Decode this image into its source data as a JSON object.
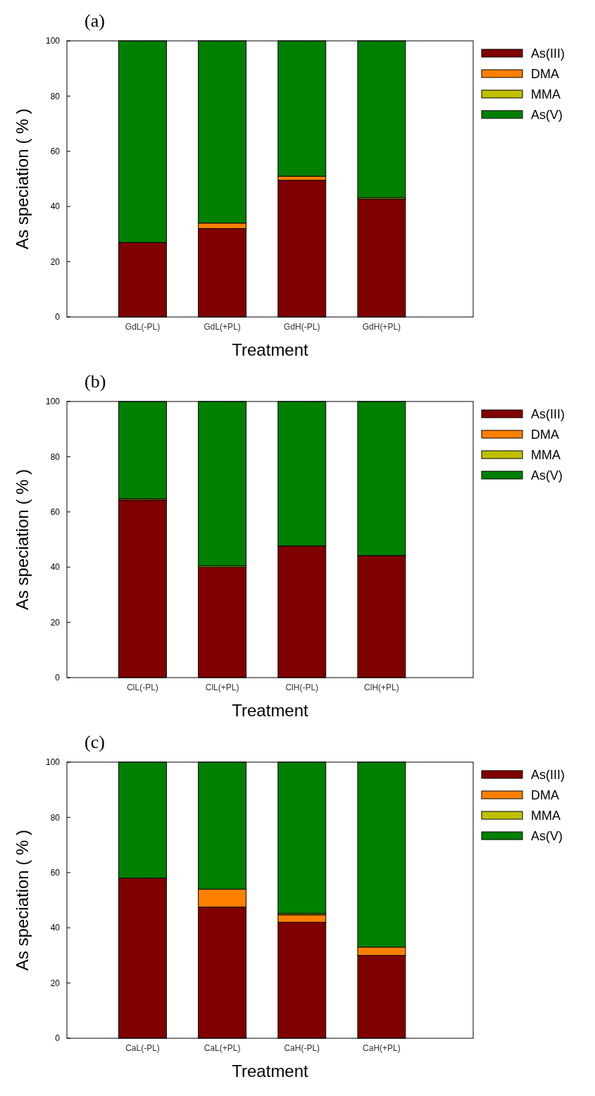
{
  "chart_data": [
    {
      "type": "bar",
      "title": "(a)",
      "xlabel": "Treatment",
      "ylabel": "As speciation ( % )",
      "categories": [
        "GdL(-PL)",
        "GdL(+PL)",
        "GdH(-PL)",
        "GdH(+PL)"
      ],
      "stacked": true,
      "legend": "right",
      "ylim": [
        0,
        100
      ],
      "yticks": [
        0,
        20,
        40,
        60,
        80,
        100
      ],
      "series": [
        {
          "name": "As(III)",
          "color": "#800000",
          "values": [
            27,
            32,
            49.5,
            42.7
          ]
        },
        {
          "name": "DMA",
          "color": "#ff8000",
          "values": [
            0,
            2,
            1.5,
            0
          ]
        },
        {
          "name": "MMA",
          "color": "#c0c000",
          "values": [
            0,
            0,
            0,
            0.5
          ]
        },
        {
          "name": "As(V)",
          "color": "#008000",
          "values": [
            73,
            66,
            49,
            56.8
          ]
        }
      ]
    },
    {
      "type": "bar",
      "title": "(b)",
      "xlabel": "Treatment",
      "ylabel": "As speciation ( % )",
      "categories": [
        "ClL(-PL)",
        "ClL(+PL)",
        "ClH(-PL)",
        "ClH(+PL)"
      ],
      "stacked": true,
      "legend": "right",
      "ylim": [
        0,
        100
      ],
      "yticks": [
        0,
        20,
        40,
        60,
        80,
        100
      ],
      "series": [
        {
          "name": "As(III)",
          "color": "#800000",
          "values": [
            64.3,
            40,
            47.7,
            44.2
          ]
        },
        {
          "name": "DMA",
          "color": "#ff8000",
          "values": [
            0,
            0,
            0,
            0
          ]
        },
        {
          "name": "MMA",
          "color": "#c0c000",
          "values": [
            0.5,
            0.5,
            0,
            0
          ]
        },
        {
          "name": "As(V)",
          "color": "#008000",
          "values": [
            35.2,
            59.5,
            52.3,
            55.8
          ]
        }
      ]
    },
    {
      "type": "bar",
      "title": "(c)",
      "xlabel": "Treatment",
      "ylabel": "As speciation ( % )",
      "categories": [
        "CaL(-PL)",
        "CaL(+PL)",
        "CaH(-PL)",
        "CaH(+PL)"
      ],
      "stacked": true,
      "legend": "right",
      "ylim": [
        0,
        100
      ],
      "yticks": [
        0,
        20,
        40,
        60,
        80,
        100
      ],
      "series": [
        {
          "name": "As(III)",
          "color": "#800000",
          "values": [
            58,
            47.5,
            42,
            30
          ]
        },
        {
          "name": "DMA",
          "color": "#ff8000",
          "values": [
            0,
            6.5,
            2.7,
            3
          ]
        },
        {
          "name": "MMA",
          "color": "#c0c000",
          "values": [
            0,
            0,
            0.5,
            0
          ]
        },
        {
          "name": "As(V)",
          "color": "#008000",
          "values": [
            42,
            46,
            54.8,
            67
          ]
        }
      ]
    }
  ]
}
